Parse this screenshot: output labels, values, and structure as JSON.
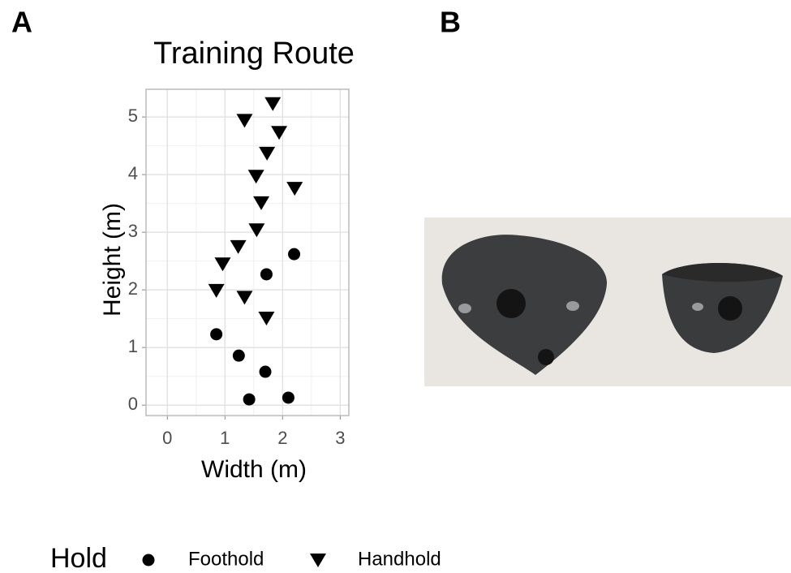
{
  "panel_labels": [
    "A",
    "B"
  ],
  "chart_data": {
    "type": "scatter",
    "title": "Training Route",
    "xlabel": "Width (m)",
    "ylabel": "Height (m)",
    "legend_title": "Hold",
    "legend_position": "bottom",
    "grid": true,
    "minor_grid": true,
    "xlim": [
      -0.37,
      3.15
    ],
    "ylim": [
      -0.18,
      5.48
    ],
    "xticks": [
      0,
      1,
      2,
      3
    ],
    "yticks": [
      0,
      1,
      2,
      3,
      4,
      5
    ],
    "series": [
      {
        "name": "Foothold",
        "color": "#000000",
        "marker": "circle",
        "x": [
          1.42,
          2.1,
          1.7,
          1.24,
          0.85,
          1.72,
          2.2
        ],
        "values": [
          0.1,
          0.13,
          0.58,
          0.86,
          1.23,
          2.27,
          2.62
        ]
      },
      {
        "name": "Handhold",
        "color": "#000000",
        "marker": "triangle-down",
        "x": [
          1.83,
          1.34,
          1.94,
          1.73,
          1.54,
          2.21,
          1.63,
          1.55,
          1.23,
          0.96,
          0.85,
          1.34,
          1.72
        ],
        "values": [
          5.23,
          4.94,
          4.73,
          4.37,
          3.97,
          3.76,
          3.51,
          3.04,
          2.75,
          2.45,
          1.99,
          1.87,
          1.51
        ]
      }
    ]
  }
}
